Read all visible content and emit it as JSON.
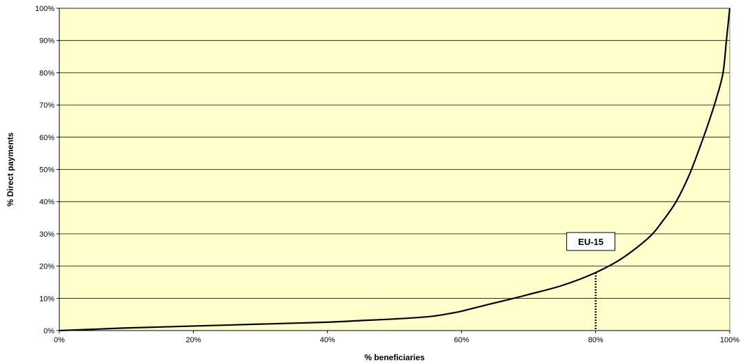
{
  "chart_data": {
    "type": "line",
    "title": "",
    "xlabel": "% beneficiaries",
    "ylabel": "% Direct payments",
    "xlim": [
      0,
      100
    ],
    "ylim": [
      0,
      100
    ],
    "x_ticks": [
      "0%",
      "20%",
      "40%",
      "60%",
      "80%",
      "100%"
    ],
    "y_ticks": [
      "0%",
      "10%",
      "20%",
      "30%",
      "40%",
      "50%",
      "60%",
      "70%",
      "80%",
      "90%",
      "100%"
    ],
    "grid": "horizontal",
    "legend": "none",
    "colors": {
      "plot_background": "#ffffcc",
      "line": "#000000",
      "grid": "#000000"
    },
    "series": [
      {
        "x": [
          0,
          5,
          10,
          20,
          30,
          40,
          45,
          50,
          55,
          58,
          60,
          63,
          66,
          70,
          75,
          80,
          84,
          88,
          90,
          92,
          94,
          96,
          97,
          98,
          99,
          99.5,
          100
        ],
        "values": [
          0,
          0.4,
          0.8,
          1.4,
          2.0,
          2.6,
          3.1,
          3.6,
          4.3,
          5.2,
          6.0,
          7.6,
          9.1,
          11.2,
          14.0,
          18.0,
          22.5,
          29.0,
          34.0,
          40.0,
          48.5,
          59.5,
          65.5,
          72.0,
          80.0,
          90.0,
          100.0
        ]
      }
    ],
    "annotations": [
      {
        "text": "EU-15",
        "x": 80,
        "y": 18
      }
    ]
  }
}
